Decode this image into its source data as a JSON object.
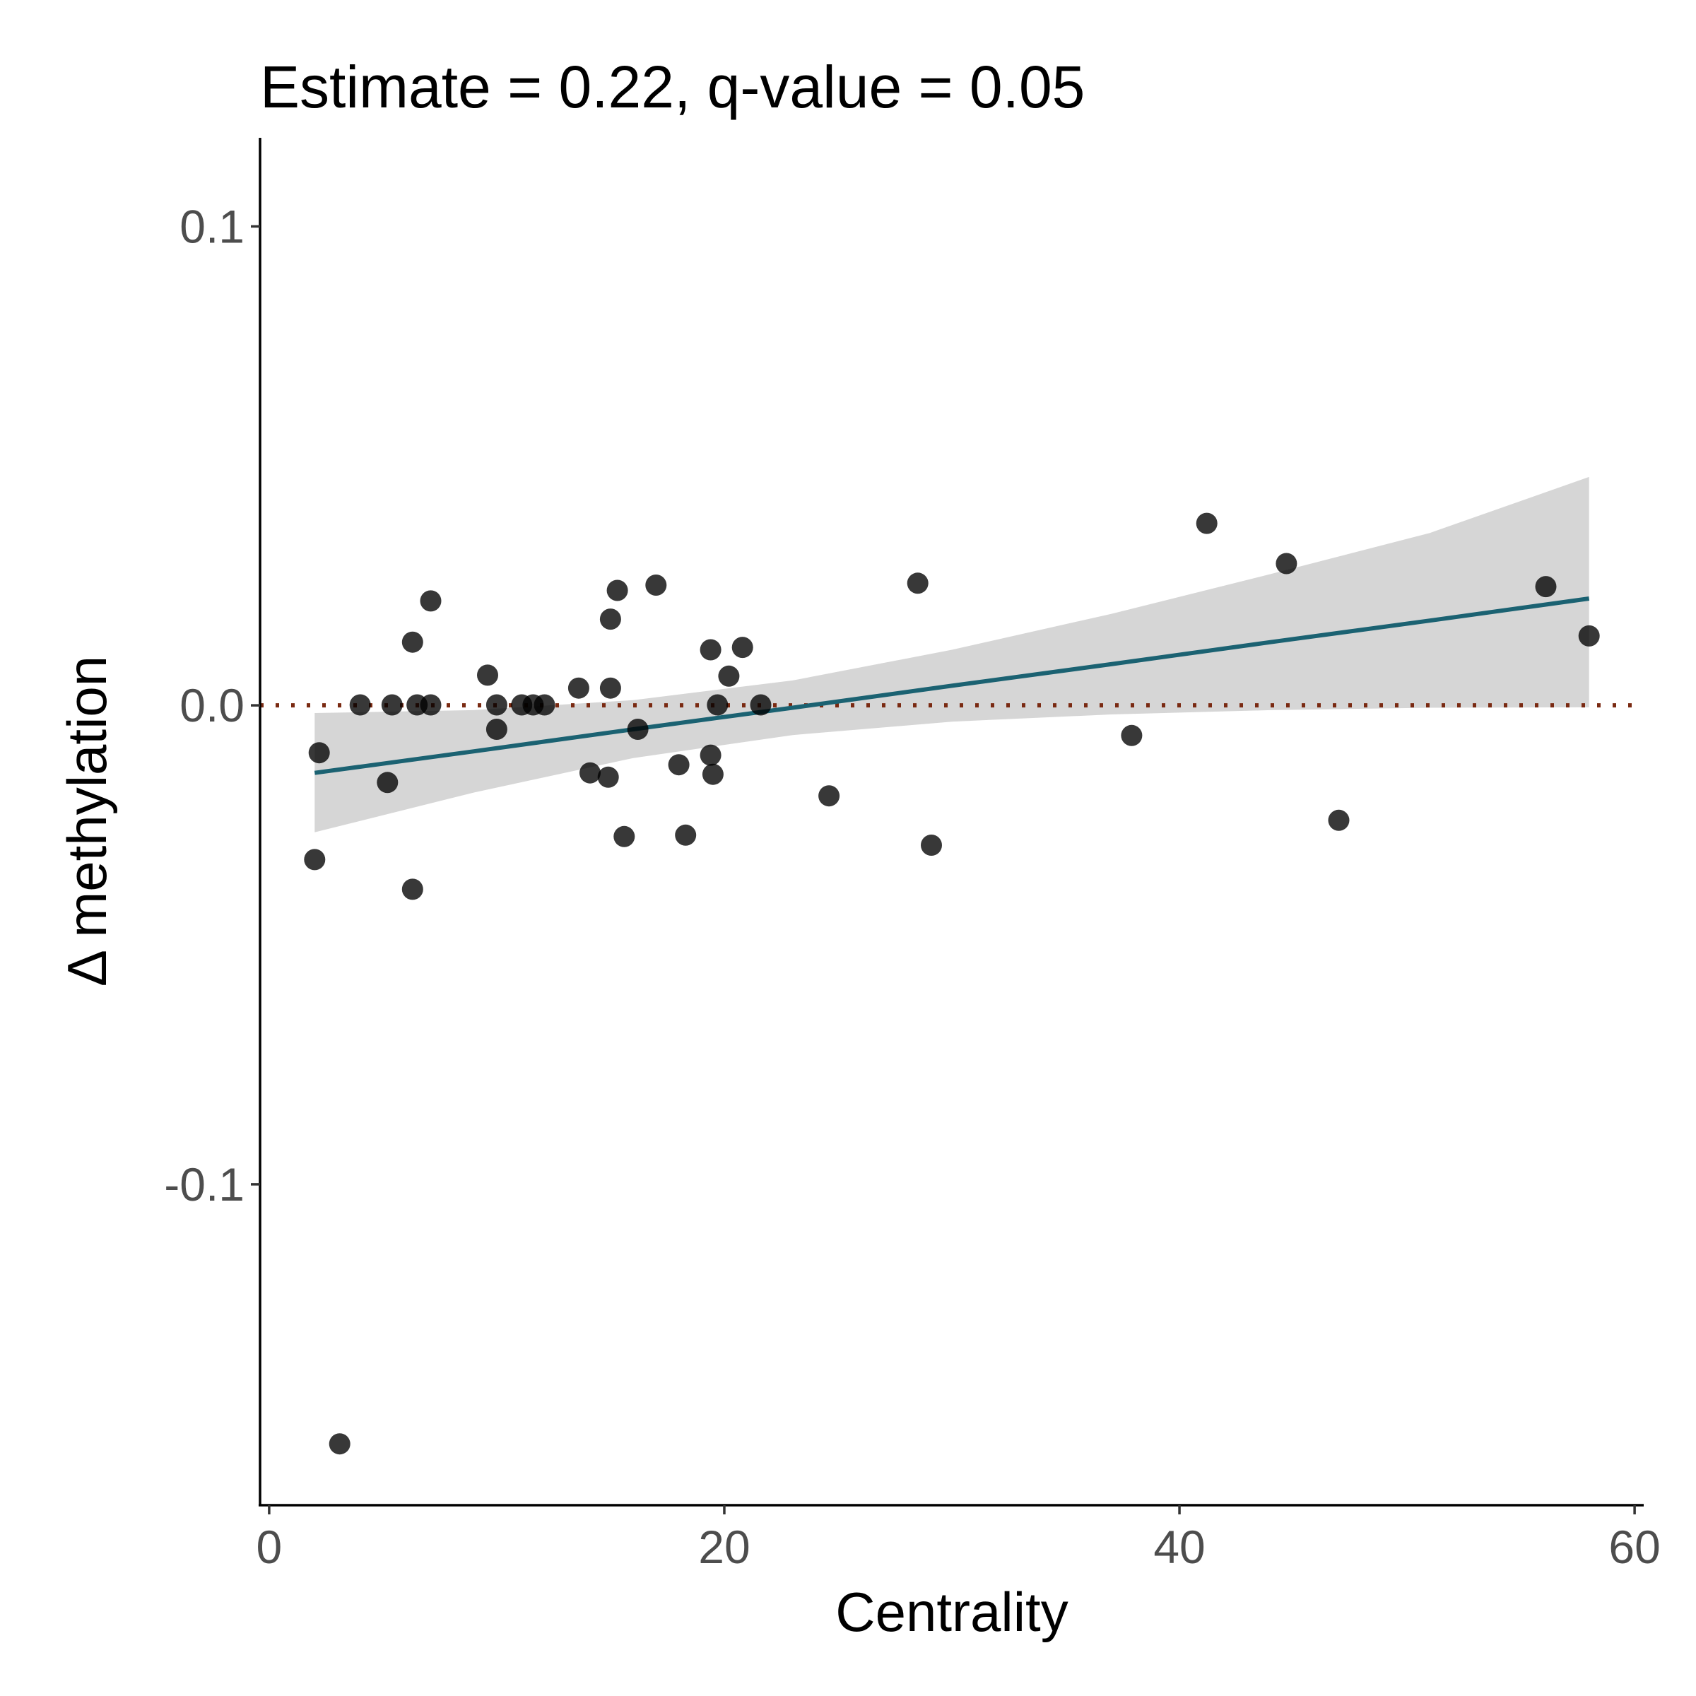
{
  "chart_data": {
    "type": "scatter",
    "title": "Estimate = 0.22, q-value = 0.05",
    "xlabel": "Centrality",
    "ylabel": "Δ methylation",
    "xlim": [
      -0.4,
      60.4
    ],
    "ylim": [
      -0.167,
      0.1185
    ],
    "x_ticks": [
      0,
      20,
      40,
      60
    ],
    "x_tick_labels": [
      "0",
      "20",
      "40",
      "60"
    ],
    "y_ticks": [
      0.1,
      0.0,
      -0.1
    ],
    "y_tick_labels": [
      "0.1",
      "0.0",
      "-0.1"
    ],
    "grid": false,
    "legend": "none",
    "colors": {
      "points": "#000000",
      "fit_line": "#1b6272",
      "confidence_band": "#d6d6d6",
      "reference_line": "#7a2a12"
    },
    "reference_line": {
      "y": 0.0,
      "style": "dotted"
    },
    "fit": {
      "x": [
        2.0,
        9.0,
        16.0,
        23.0,
        30.0,
        37.0,
        44.0,
        51.0,
        58.0
      ],
      "y": [
        -0.0141,
        -0.0096,
        -0.005,
        -0.0005,
        0.0041,
        0.0086,
        0.0132,
        0.0177,
        0.0223
      ],
      "lower": [
        -0.0265,
        -0.0182,
        -0.011,
        -0.0062,
        -0.0034,
        -0.0019,
        -0.001,
        -0.0005,
        -0.0004
      ],
      "upper": [
        -0.0016,
        -0.001,
        0.0011,
        0.0052,
        0.0116,
        0.0191,
        0.0274,
        0.036,
        0.0477
      ]
    },
    "series": [
      {
        "points": [
          {
            "x": 2.0,
            "y": -0.0322
          },
          {
            "x": 2.2,
            "y": -0.0099
          },
          {
            "x": 3.1,
            "y": -0.1542
          },
          {
            "x": 4.0,
            "y": 0.0001
          },
          {
            "x": 5.2,
            "y": -0.0161
          },
          {
            "x": 5.4,
            "y": 0.0001
          },
          {
            "x": 6.3,
            "y": 0.0132
          },
          {
            "x": 6.3,
            "y": -0.0384
          },
          {
            "x": 6.5,
            "y": 0.0001
          },
          {
            "x": 7.1,
            "y": 0.0218
          },
          {
            "x": 7.1,
            "y": 0.0001
          },
          {
            "x": 9.6,
            "y": 0.0063
          },
          {
            "x": 10.0,
            "y": 0.0001
          },
          {
            "x": 10.0,
            "y": -0.005
          },
          {
            "x": 11.1,
            "y": 0.0001
          },
          {
            "x": 11.6,
            "y": 0.0001
          },
          {
            "x": 12.1,
            "y": 0.0001
          },
          {
            "x": 13.6,
            "y": 0.0036
          },
          {
            "x": 14.1,
            "y": -0.0141
          },
          {
            "x": 14.9,
            "y": -0.015
          },
          {
            "x": 15.0,
            "y": 0.018
          },
          {
            "x": 15.0,
            "y": 0.0036
          },
          {
            "x": 15.3,
            "y": 0.024
          },
          {
            "x": 15.6,
            "y": -0.0274
          },
          {
            "x": 16.2,
            "y": -0.005
          },
          {
            "x": 17.0,
            "y": 0.0251
          },
          {
            "x": 18.0,
            "y": -0.0124
          },
          {
            "x": 18.3,
            "y": -0.0271
          },
          {
            "x": 19.4,
            "y": 0.0116
          },
          {
            "x": 19.4,
            "y": -0.0104
          },
          {
            "x": 19.5,
            "y": -0.0144
          },
          {
            "x": 19.7,
            "y": 0.0001
          },
          {
            "x": 20.2,
            "y": 0.0061
          },
          {
            "x": 20.8,
            "y": 0.0121
          },
          {
            "x": 21.6,
            "y": 0.0001
          },
          {
            "x": 24.6,
            "y": -0.0189
          },
          {
            "x": 28.5,
            "y": 0.0255
          },
          {
            "x": 29.1,
            "y": -0.0292
          },
          {
            "x": 37.9,
            "y": -0.0063
          },
          {
            "x": 41.2,
            "y": 0.038
          },
          {
            "x": 44.7,
            "y": 0.0296
          },
          {
            "x": 47.0,
            "y": -0.024
          },
          {
            "x": 56.1,
            "y": 0.0248
          },
          {
            "x": 58.0,
            "y": 0.0145
          }
        ]
      }
    ]
  }
}
